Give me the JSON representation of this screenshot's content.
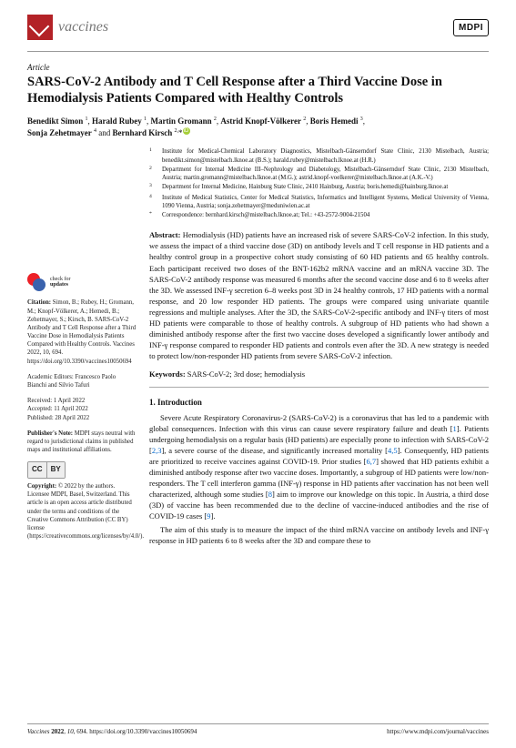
{
  "journal_name": "vaccines",
  "publisher_badge": "MDPI",
  "article_type": "Article",
  "title": "SARS-CoV-2 Antibody and T Cell Response after a Third Vaccine Dose in Hemodialysis Patients Compared with Healthy Controls",
  "authors_html": "Benedikt Simon <span class='sup'>1</span>, Harald Rubey <span class='sup'>1</span>, Martin Gromann <span class='sup'>2</span>, Astrid Knopf-Völkerer <span class='sup'>2</span>, Boris Hemedi <span class='sup'>3</span>, Sonja Zehetmayer <span class='sup'>4</span> and Bernhard Kirsch <span class='sup'>2,</span>*",
  "affiliations": [
    {
      "n": "1",
      "t": "Institute for Medical-Chemical Laboratory Diagnostics, Mistelbach-Gänserndorf State Clinic, 2130 Mistelbach, Austria; benedikt.simon@mistelbach.lknoe.at (B.S.); harald.rubey@mistelbach.lknoe.at (H.R.)"
    },
    {
      "n": "2",
      "t": "Department for Internal Medicine III–Nephrology and Diabetology, Mistelbach-Gänserndorf State Clinic, 2130 Mistelbach, Austria; martin.gromann@mistelbach.lknoe.at (M.G.); astrid.knopf-voelkerer@mistelbach.lknoe.at (A.K.-V.)"
    },
    {
      "n": "3",
      "t": "Department for Internal Medicine, Hainburg State Clinic, 2410 Hainburg, Austria; boris.hemedi@hainburg.lknoe.at"
    },
    {
      "n": "4",
      "t": "Institute of Medical Statistics, Center for Medical Statistics, Informatics and Intelligent Systems, Medical University of Vienna, 1090 Vienna, Austria; sonja.zehetmayer@meduniwien.ac.at"
    },
    {
      "n": "*",
      "t": "Correspondence: bernhard.kirsch@mistelbach.lknoe.at; Tel.: +43-2572-9004-21504"
    }
  ],
  "abstract_label": "Abstract:",
  "abstract": "Hemodialysis (HD) patients have an increased risk of severe SARS-CoV-2 infection. In this study, we assess the impact of a third vaccine dose (3D) on antibody levels and T cell response in HD patients and a healthy control group in a prospective cohort study consisting of 60 HD patients and 65 healthy controls. Each participant received two doses of the BNT-162b2 mRNA vaccine and an mRNA vaccine 3D. The SARS-CoV-2 antibody response was measured 6 months after the second vaccine dose and 6 to 8 weeks after the 3D. We assessed INF-γ secretion 6–8 weeks post 3D in 24 healthy controls, 17 HD patients with a normal response, and 20 low responder HD patients. The groups were compared using univariate quantile regressions and multiple analyses. After the 3D, the SARS-CoV-2-specific antibody and INF-γ titers of most HD patients were comparable to those of healthy controls. A subgroup of HD patients who had shown a diminished antibody response after the first two vaccine doses developed a significantly lower antibody and INF-γ response compared to responder HD patients and controls even after the 3D. A new strategy is needed to protect low/non-responder HD patients from severe SARS-CoV-2 infection.",
  "keywords_label": "Keywords:",
  "keywords": "SARS-CoV-2; 3rd dose; hemodialysis",
  "section1_head": "1. Introduction",
  "intro_p1": "Severe Acute Respiratory Coronavirus-2 (SARS-CoV-2) is a coronavirus that has led to a pandemic with global consequences. Infection with this virus can cause severe respiratory failure and death [1]. Patients undergoing hemodialysis on a regular basis (HD patients) are especially prone to infection with SARS-CoV-2 [2,3], a severe course of the disease, and significantly increased mortality [4,5]. Consequently, HD patients are prioritized to receive vaccines against COVID-19. Prior studies [6,7] showed that HD patients exhibit a diminished antibody response after two vaccine doses. Importantly, a subgroup of HD patients were low/non-responders. The T cell interferon gamma (INF-γ) response in HD patients after vaccination has not been well characterized, although some studies [8] aim to improve our knowledge on this topic. In Austria, a third dose (3D) of vaccine has been recommended due to the decline of vaccine-induced antibodies and the rise of COVID-19 cases [9].",
  "intro_p2": "The aim of this study is to measure the impact of the third mRNA vaccine on antibody levels and INF-γ response in HD patients 6 to 8 weeks after the 3D and compare these to",
  "check_updates": "check for\nupdates",
  "citation_label": "Citation:",
  "citation": "Simon, B.; Rubey, H.; Gromann, M.; Knopf-Völkerer, A.; Hemedi, B.; Zehetmayer, S.; Kirsch, B. SARS-CoV-2 Antibody and T Cell Response after a Third Vaccine Dose in Hemodialysis Patients Compared with Healthy Controls. Vaccines 2022, 10, 694. https://doi.org/10.3390/vaccines10050694",
  "editors": "Academic Editors: Francesco Paolo Bianchi and Silvio Tafuri",
  "received": "Received: 1 April 2022",
  "accepted": "Accepted: 11 April 2022",
  "published": "Published: 28 April 2022",
  "pubnote_label": "Publisher's Note:",
  "pubnote": "MDPI stays neutral with regard to jurisdictional claims in published maps and institutional affiliations.",
  "copyright_label": "Copyright:",
  "copyright": "© 2022 by the authors. Licensee MDPI, Basel, Switzerland. This article is an open access article distributed under the terms and conditions of the Creative Commons Attribution (CC BY) license (https://creativecommons.org/licenses/by/4.0/).",
  "footer_left": "Vaccines 2022, 10, 694. https://doi.org/10.3390/vaccines10050694",
  "footer_right": "https://www.mdpi.com/journal/vaccines",
  "colors": {
    "brand_red": "#b32227",
    "link_blue": "#0066cc",
    "orcid_green": "#a6ce39"
  }
}
